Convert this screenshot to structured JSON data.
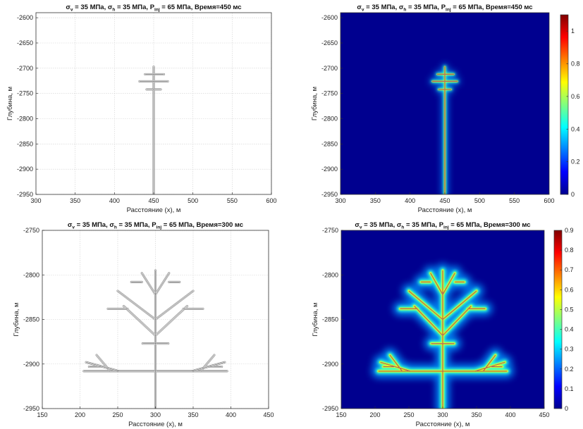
{
  "colors": {
    "frac_line": "#4a4a4a",
    "frac_light": "#9a9a9a",
    "jet_background": "#00008f",
    "grid": "#d0d0d0"
  },
  "chart_data": [
    {
      "type": "line",
      "panel": "top-left",
      "title_parts": [
        "σ",
        "v",
        " = 35 МПа, ",
        "σ",
        "h",
        " = 35 МПа, P",
        "inj",
        " = 65 МПа, Время=450 мс"
      ],
      "xlabel": "Расстояние (x), м",
      "ylabel": "Глубина, м",
      "xlim": [
        300,
        600
      ],
      "ylim": [
        -2950,
        -2590
      ],
      "xticks": [
        300,
        350,
        400,
        450,
        500,
        550,
        600
      ],
      "yticks": [
        -2600,
        -2650,
        -2700,
        -2750,
        -2800,
        -2850,
        -2900,
        -2950
      ],
      "grid": true,
      "segments": [
        {
          "x": [
            450,
            450
          ],
          "y": [
            -2950,
            -2697
          ]
        },
        {
          "x": [
            439,
            463
          ],
          "y": [
            -2712,
            -2712
          ]
        },
        {
          "x": [
            432,
            468
          ],
          "y": [
            -2726,
            -2726
          ]
        },
        {
          "x": [
            441,
            459
          ],
          "y": [
            -2742,
            -2742
          ]
        }
      ]
    },
    {
      "type": "heatmap",
      "panel": "top-right",
      "title_parts": [
        "σ",
        "v",
        " = 35 МПа, ",
        "σ",
        "h",
        " = 35 МПа, P",
        "inj",
        " = 65 МПа, Время=450 мс"
      ],
      "xlabel": "Расстояние (x), м",
      "ylabel": "Глубина, м",
      "xlim": [
        300,
        600
      ],
      "ylim": [
        -2950,
        -2590
      ],
      "xticks": [
        300,
        350,
        400,
        450,
        500,
        550,
        600
      ],
      "yticks": [
        -2600,
        -2650,
        -2700,
        -2750,
        -2800,
        -2850,
        -2900,
        -2950
      ],
      "colorbar": {
        "min": 0,
        "max": 1.1,
        "ticks": [
          0,
          0.2,
          0.4,
          0.6,
          0.8,
          1
        ]
      },
      "segments": [
        {
          "x": [
            450,
            450
          ],
          "y": [
            -2950,
            -2697
          ]
        },
        {
          "x": [
            439,
            463
          ],
          "y": [
            -2712,
            -2712
          ]
        },
        {
          "x": [
            432,
            468
          ],
          "y": [
            -2726,
            -2726
          ]
        },
        {
          "x": [
            441,
            459
          ],
          "y": [
            -2742,
            -2742
          ]
        }
      ]
    },
    {
      "type": "line",
      "panel": "bottom-left",
      "title_parts": [
        "σ",
        "v",
        " = 35 МПа, ",
        "σ",
        "h",
        " = 35 МПа, P",
        "inj",
        " = 65 МПа, Время=300 мс"
      ],
      "xlabel": "Расстояние (x), м",
      "ylabel": "Глубина, м",
      "xlim": [
        150,
        450
      ],
      "ylim": [
        -2950,
        -2750
      ],
      "xticks": [
        150,
        200,
        250,
        300,
        350,
        400,
        450
      ],
      "yticks": [
        -2750,
        -2800,
        -2850,
        -2900,
        -2950
      ],
      "grid": true,
      "segments": [
        {
          "x": [
            300,
            300
          ],
          "y": [
            -2950,
            -2795
          ]
        },
        {
          "x": [
            205,
            395
          ],
          "y": [
            -2908,
            -2908
          ]
        },
        {
          "x": [
            300,
            282
          ],
          "y": [
            -2822,
            -2798
          ]
        },
        {
          "x": [
            300,
            318
          ],
          "y": [
            -2822,
            -2798
          ]
        },
        {
          "x": [
            300,
            250
          ],
          "y": [
            -2850,
            -2818
          ]
        },
        {
          "x": [
            300,
            350
          ],
          "y": [
            -2850,
            -2818
          ]
        },
        {
          "x": [
            300,
            258
          ],
          "y": [
            -2868,
            -2835
          ]
        },
        {
          "x": [
            300,
            342
          ],
          "y": [
            -2868,
            -2835
          ]
        },
        {
          "x": [
            252,
            208
          ],
          "y": [
            -2908,
            -2898
          ]
        },
        {
          "x": [
            348,
            392
          ],
          "y": [
            -2908,
            -2898
          ]
        },
        {
          "x": [
            240,
            222
          ],
          "y": [
            -2908,
            -2890
          ]
        },
        {
          "x": [
            360,
            378
          ],
          "y": [
            -2908,
            -2890
          ]
        },
        {
          "x": [
            237,
            263
          ],
          "y": [
            -2838,
            -2838
          ]
        },
        {
          "x": [
            337,
            363
          ],
          "y": [
            -2838,
            -2838
          ]
        },
        {
          "x": [
            283,
            317
          ],
          "y": [
            -2877,
            -2877
          ]
        },
        {
          "x": [
            268,
            282
          ],
          "y": [
            -2808,
            -2808
          ]
        },
        {
          "x": [
            318,
            332
          ],
          "y": [
            -2808,
            -2808
          ]
        },
        {
          "x": [
            212,
            228
          ],
          "y": [
            -2903,
            -2903
          ]
        },
        {
          "x": [
            372,
            388
          ],
          "y": [
            -2903,
            -2903
          ]
        }
      ]
    },
    {
      "type": "heatmap",
      "panel": "bottom-right",
      "title_parts": [
        "σ",
        "v",
        " = 35 МПа, ",
        "σ",
        "h",
        " = 35 МПа, P",
        "inj",
        " = 65 МПа, Время=300 мс"
      ],
      "xlabel": "Расстояние (x), м",
      "ylabel": "Глубина, м",
      "xlim": [
        150,
        450
      ],
      "ylim": [
        -2950,
        -2750
      ],
      "xticks": [
        150,
        200,
        250,
        300,
        350,
        400,
        450
      ],
      "yticks": [
        -2750,
        -2800,
        -2850,
        -2900,
        -2950
      ],
      "colorbar": {
        "min": 0,
        "max": 0.9,
        "ticks": [
          0,
          0.1,
          0.2,
          0.3,
          0.4,
          0.5,
          0.6,
          0.7,
          0.8,
          0.9
        ]
      },
      "segments": [
        {
          "x": [
            300,
            300
          ],
          "y": [
            -2950,
            -2795
          ]
        },
        {
          "x": [
            205,
            395
          ],
          "y": [
            -2908,
            -2908
          ]
        },
        {
          "x": [
            300,
            282
          ],
          "y": [
            -2822,
            -2798
          ]
        },
        {
          "x": [
            300,
            318
          ],
          "y": [
            -2822,
            -2798
          ]
        },
        {
          "x": [
            300,
            250
          ],
          "y": [
            -2850,
            -2818
          ]
        },
        {
          "x": [
            300,
            350
          ],
          "y": [
            -2850,
            -2818
          ]
        },
        {
          "x": [
            300,
            258
          ],
          "y": [
            -2868,
            -2835
          ]
        },
        {
          "x": [
            300,
            342
          ],
          "y": [
            -2868,
            -2835
          ]
        },
        {
          "x": [
            252,
            208
          ],
          "y": [
            -2908,
            -2898
          ]
        },
        {
          "x": [
            348,
            392
          ],
          "y": [
            -2908,
            -2898
          ]
        },
        {
          "x": [
            240,
            222
          ],
          "y": [
            -2908,
            -2890
          ]
        },
        {
          "x": [
            360,
            378
          ],
          "y": [
            -2908,
            -2890
          ]
        },
        {
          "x": [
            237,
            263
          ],
          "y": [
            -2838,
            -2838
          ]
        },
        {
          "x": [
            337,
            363
          ],
          "y": [
            -2838,
            -2838
          ]
        },
        {
          "x": [
            283,
            317
          ],
          "y": [
            -2877,
            -2877
          ]
        },
        {
          "x": [
            268,
            282
          ],
          "y": [
            -2808,
            -2808
          ]
        },
        {
          "x": [
            318,
            332
          ],
          "y": [
            -2808,
            -2808
          ]
        },
        {
          "x": [
            212,
            228
          ],
          "y": [
            -2903,
            -2903
          ]
        },
        {
          "x": [
            372,
            388
          ],
          "y": [
            -2903,
            -2903
          ]
        }
      ]
    }
  ]
}
